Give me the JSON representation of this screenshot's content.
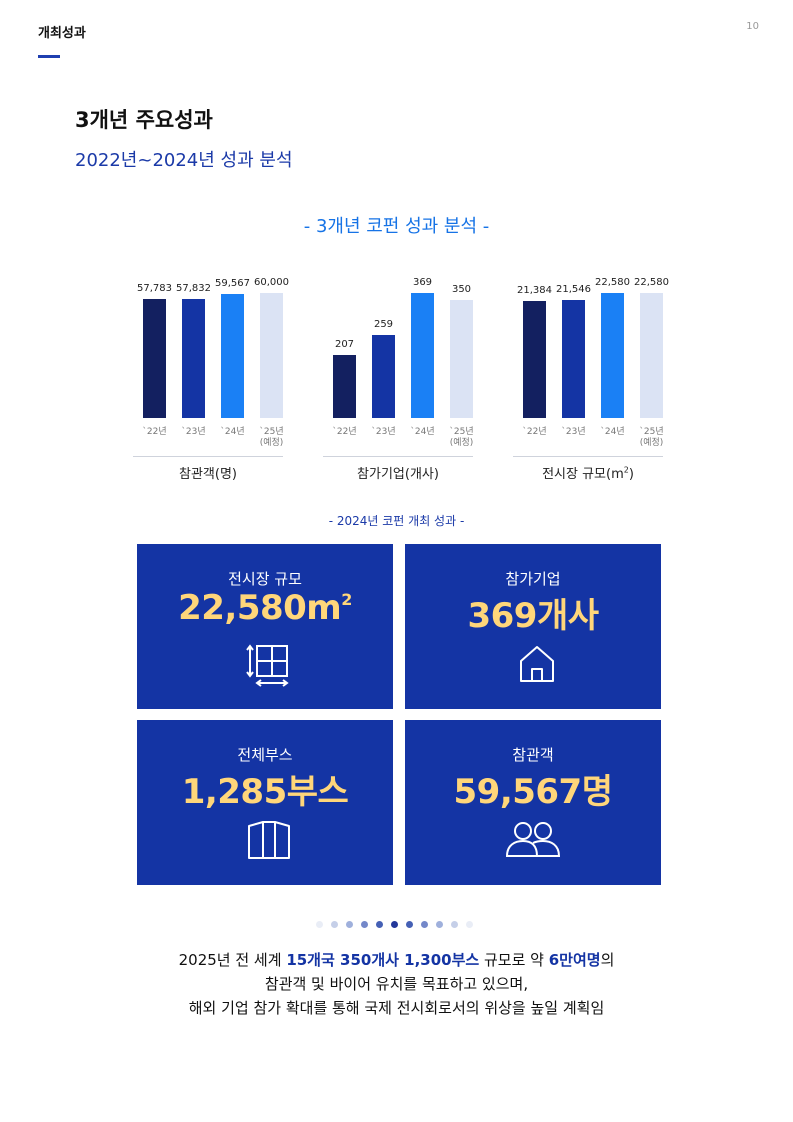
{
  "header": {
    "section_label": "개최성과",
    "page_number": "10"
  },
  "title": "3개년 주요성과",
  "subtitle": "2022년~2024년 성과 분석",
  "section_title": "- 3개년 코펀 성과 분석 -",
  "chart_colors": [
    "#132060",
    "#1434a4",
    "#1a80f5",
    "#dbe3f4"
  ],
  "chart_data": [
    {
      "type": "bar",
      "categories": [
        "`22년",
        "`23년",
        "`24년",
        "`25년\n(예정)"
      ],
      "values": [
        57783,
        57832,
        59567,
        60000
      ],
      "value_labels": [
        "57,783",
        "57,832",
        "59,567",
        "60,000"
      ],
      "xlabel": "참관객(명)"
    },
    {
      "type": "bar",
      "categories": [
        "`22년",
        "`23년",
        "`24년",
        "`25년\n(예정)"
      ],
      "values": [
        207,
        259,
        369,
        350
      ],
      "value_labels": [
        "207",
        "259",
        "369",
        "350"
      ],
      "xlabel": "참가기업(개사)"
    },
    {
      "type": "bar",
      "categories": [
        "`22년",
        "`23년",
        "`24년",
        "`25년\n(예정)"
      ],
      "values": [
        21384,
        21546,
        22580,
        22580
      ],
      "value_labels": [
        "21,384",
        "21,546",
        "22,580",
        "22,580"
      ],
      "xlabel": "전시장 규모(m",
      "xlabel_sup": "2",
      "xlabel_end": ")"
    }
  ],
  "section2_title": "- 2024년 코펀 개최 성과 -",
  "cards": {
    "area": {
      "label": "전시장 규모",
      "value": "22,580m",
      "sup": "2",
      "icon": "floor-plan-icon"
    },
    "exhibitors": {
      "label": "참가기업",
      "value": "369개사",
      "icon": "house-icon"
    },
    "booths": {
      "label": "전체부스",
      "value": "1,285부스",
      "icon": "booth-panel-icon"
    },
    "visitors": {
      "label": "참관객",
      "value": "59,567명",
      "icon": "people-icon"
    }
  },
  "note": {
    "l1_a": "2025년 전 세계 ",
    "l1_b": "15개국 350개사 1,300부스",
    "l1_c": " 규모로 약 ",
    "l1_d": "6만여명",
    "l1_e": "의",
    "l2": "참관객 및 바이어 유치를 목표하고 있으며,",
    "l3": "해외 기업 참가 확대를 통해 국제 전시회로서의 위상을 높일 계획임"
  }
}
